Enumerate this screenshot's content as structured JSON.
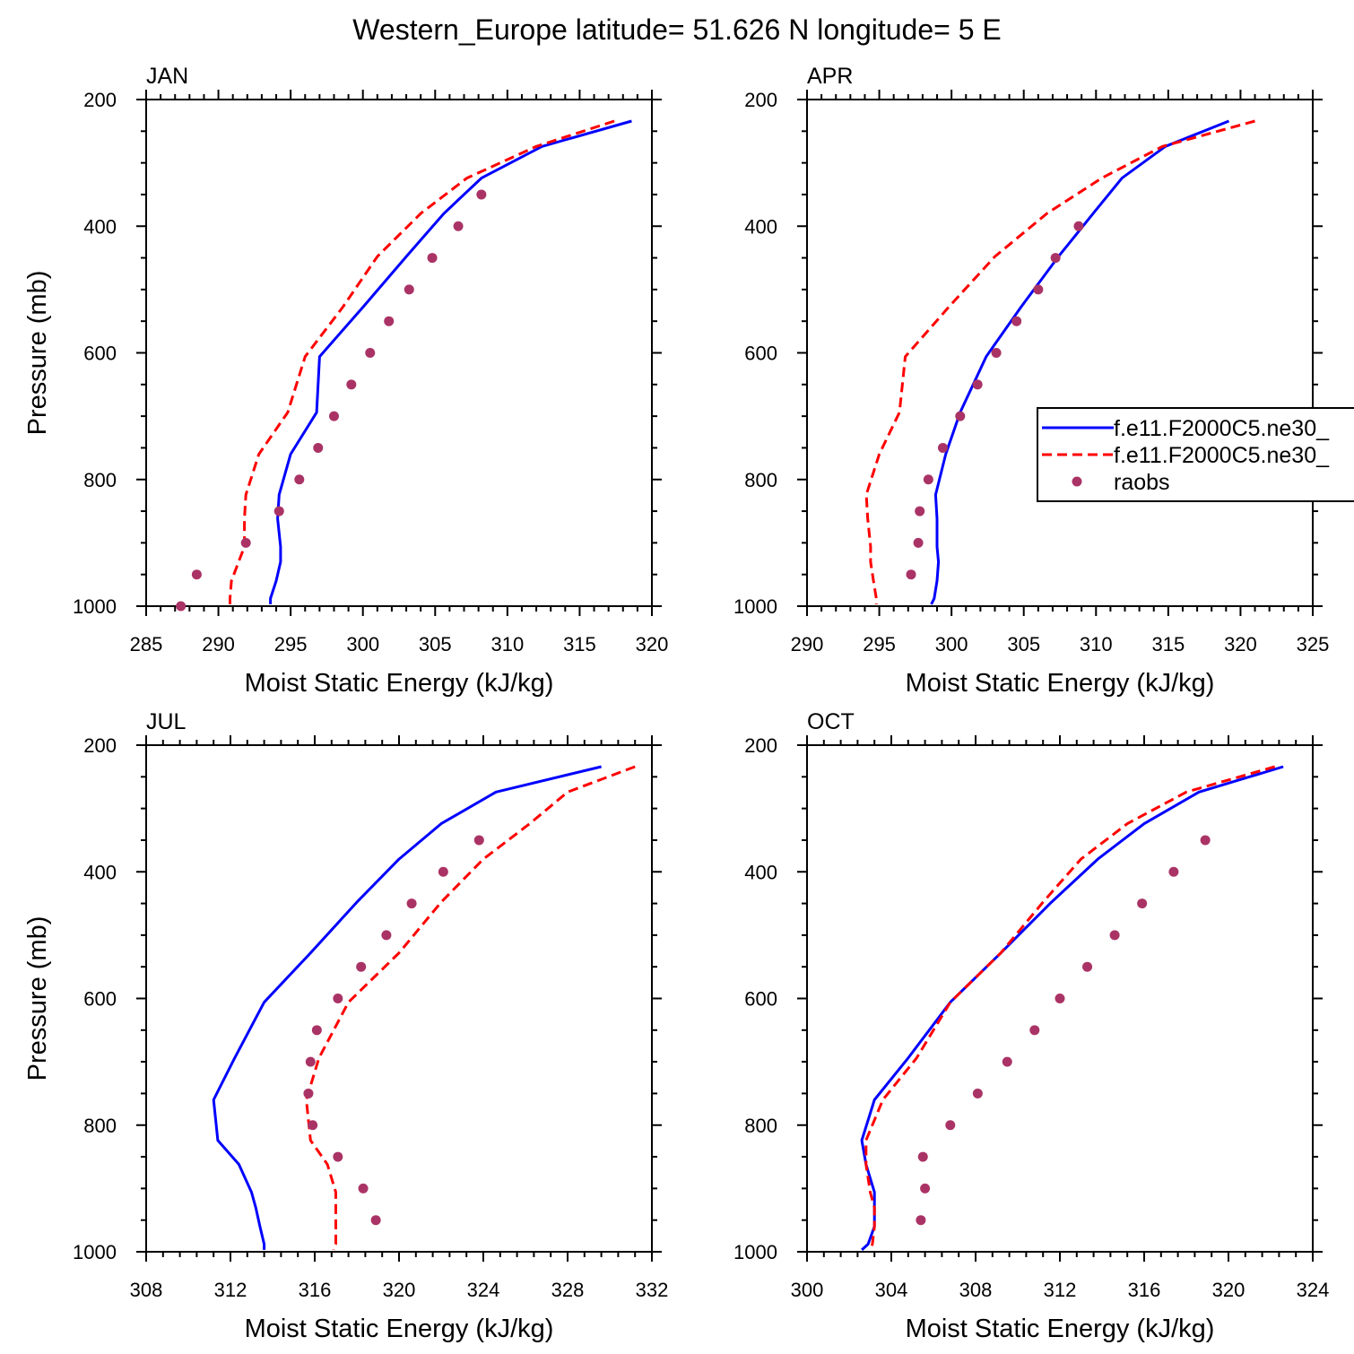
{
  "figure_title": "Western_Europe  latitude= 51.626 N longitude= 5 E",
  "legend": {
    "entries": [
      {
        "label": "f.e11.F2000C5.ne30_",
        "style": "solid",
        "color": "#0000ff"
      },
      {
        "label": "f.e11.F2000C5.ne30_",
        "style": "dashed",
        "color": "#ff0000"
      },
      {
        "label": "raobs",
        "style": "marker",
        "color": "#aa3366"
      }
    ]
  },
  "chart_data": [
    {
      "type": "line",
      "panel": "JAN",
      "title": "JAN",
      "xlabel": "Moist Static Energy (kJ/kg)",
      "ylabel": "Pressure (mb)",
      "xlim": [
        285,
        320
      ],
      "ylim": [
        200,
        1000
      ],
      "xticks": [
        285,
        290,
        295,
        300,
        305,
        310,
        315,
        320
      ],
      "yticks": [
        200,
        400,
        600,
        800,
        1000
      ],
      "series": [
        {
          "name": "f.e11.F2000C5.ne30_ (solid)",
          "color": "#0000ff",
          "style": "solid",
          "points": [
            [
              318.6,
              234
            ],
            [
              312.4,
              274
            ],
            [
              308.2,
              324
            ],
            [
              305.6,
              380
            ],
            [
              303.0,
              448
            ],
            [
              300.0,
              528
            ],
            [
              297.0,
              606
            ],
            [
              296.8,
              694
            ],
            [
              295.0,
              760
            ],
            [
              294.2,
              824
            ],
            [
              294.1,
              862
            ],
            [
              294.3,
              906
            ],
            [
              294.3,
              930
            ],
            [
              294.0,
              960
            ],
            [
              293.6,
              988
            ],
            [
              293.6,
              997
            ]
          ]
        },
        {
          "name": "f.e11.F2000C5.ne30_ (dashed)",
          "color": "#ff0000",
          "style": "dashed",
          "points": [
            [
              317.4,
              234
            ],
            [
              312.0,
              274
            ],
            [
              307.2,
              324
            ],
            [
              304.0,
              380
            ],
            [
              301.0,
              448
            ],
            [
              298.6,
              528
            ],
            [
              296.0,
              606
            ],
            [
              294.8,
              694
            ],
            [
              292.8,
              760
            ],
            [
              291.9,
              824
            ],
            [
              291.8,
              862
            ],
            [
              291.8,
              906
            ],
            [
              291.4,
              930
            ],
            [
              290.9,
              960
            ],
            [
              290.8,
              988
            ],
            [
              290.8,
              997
            ]
          ]
        },
        {
          "name": "raobs",
          "color": "#aa3366",
          "style": "marker",
          "points": [
            [
              308.2,
              350
            ],
            [
              306.6,
              400
            ],
            [
              304.8,
              450
            ],
            [
              303.2,
              500
            ],
            [
              301.8,
              550
            ],
            [
              300.5,
              600
            ],
            [
              299.2,
              650
            ],
            [
              298.0,
              700
            ],
            [
              296.9,
              750
            ],
            [
              295.6,
              800
            ],
            [
              294.2,
              850
            ],
            [
              291.9,
              900
            ],
            [
              288.5,
              950
            ],
            [
              287.4,
              1000
            ]
          ]
        }
      ]
    },
    {
      "type": "line",
      "panel": "APR",
      "title": "APR",
      "xlabel": "Moist Static Energy (kJ/kg)",
      "ylabel": "Pressure (mb)",
      "xlim": [
        290,
        325
      ],
      "ylim": [
        200,
        1000
      ],
      "xticks": [
        290,
        295,
        300,
        305,
        310,
        315,
        320,
        325
      ],
      "yticks": [
        200,
        400,
        600,
        800,
        1000
      ],
      "series": [
        {
          "name": "f.e11.F2000C5.ne30_ (solid)",
          "color": "#0000ff",
          "style": "solid",
          "points": [
            [
              319.2,
              234
            ],
            [
              314.8,
              274
            ],
            [
              311.8,
              324
            ],
            [
              309.8,
              380
            ],
            [
              307.4,
              448
            ],
            [
              304.8,
              528
            ],
            [
              302.4,
              606
            ],
            [
              300.6,
              694
            ],
            [
              299.6,
              760
            ],
            [
              298.9,
              824
            ],
            [
              299.0,
              862
            ],
            [
              299.0,
              906
            ],
            [
              299.1,
              930
            ],
            [
              299.0,
              960
            ],
            [
              298.8,
              988
            ],
            [
              298.6,
              997
            ]
          ]
        },
        {
          "name": "f.e11.F2000C5.ne30_ (dashed)",
          "color": "#ff0000",
          "style": "dashed",
          "points": [
            [
              321.0,
              234
            ],
            [
              314.6,
              274
            ],
            [
              310.4,
              324
            ],
            [
              306.6,
              380
            ],
            [
              303.0,
              448
            ],
            [
              299.8,
              528
            ],
            [
              296.8,
              606
            ],
            [
              296.4,
              694
            ],
            [
              295.0,
              760
            ],
            [
              294.1,
              824
            ],
            [
              294.2,
              862
            ],
            [
              294.4,
              906
            ],
            [
              294.4,
              930
            ],
            [
              294.6,
              960
            ],
            [
              294.8,
              988
            ],
            [
              294.8,
              997
            ]
          ]
        },
        {
          "name": "raobs",
          "color": "#aa3366",
          "style": "marker",
          "points": [
            [
              308.8,
              400
            ],
            [
              307.2,
              450
            ],
            [
              306.0,
              500
            ],
            [
              304.5,
              550
            ],
            [
              303.1,
              600
            ],
            [
              301.8,
              650
            ],
            [
              300.6,
              700
            ],
            [
              299.4,
              750
            ],
            [
              298.4,
              800
            ],
            [
              297.8,
              850
            ],
            [
              297.7,
              900
            ],
            [
              297.2,
              950
            ]
          ]
        }
      ]
    },
    {
      "type": "line",
      "panel": "JUL",
      "title": "JUL",
      "xlabel": "Moist Static Energy (kJ/kg)",
      "ylabel": "Pressure (mb)",
      "xlim": [
        308,
        332
      ],
      "ylim": [
        200,
        1000
      ],
      "xticks": [
        308,
        312,
        316,
        320,
        324,
        328,
        332
      ],
      "yticks": [
        200,
        400,
        600,
        800,
        1000
      ],
      "series": [
        {
          "name": "f.e11.F2000C5.ne30_ (solid)",
          "color": "#0000ff",
          "style": "solid",
          "points": [
            [
              329.6,
              234
            ],
            [
              324.6,
              274
            ],
            [
              322.0,
              324
            ],
            [
              320.0,
              380
            ],
            [
              318.0,
              448
            ],
            [
              315.8,
              528
            ],
            [
              313.6,
              606
            ],
            [
              312.2,
              694
            ],
            [
              311.2,
              760
            ],
            [
              311.4,
              824
            ],
            [
              312.4,
              862
            ],
            [
              313.0,
              906
            ],
            [
              313.2,
              930
            ],
            [
              313.4,
              960
            ],
            [
              313.6,
              988
            ],
            [
              313.6,
              997
            ]
          ]
        },
        {
          "name": "f.e11.F2000C5.ne30_ (dashed)",
          "color": "#ff0000",
          "style": "dashed",
          "points": [
            [
              331.2,
              234
            ],
            [
              328.0,
              274
            ],
            [
              326.2,
              324
            ],
            [
              324.0,
              380
            ],
            [
              322.0,
              448
            ],
            [
              320.0,
              528
            ],
            [
              317.6,
              606
            ],
            [
              316.2,
              694
            ],
            [
              315.6,
              760
            ],
            [
              315.8,
              824
            ],
            [
              316.6,
              862
            ],
            [
              317.0,
              906
            ],
            [
              317.0,
              930
            ],
            [
              317.0,
              960
            ],
            [
              317.0,
              988
            ],
            [
              316.9,
              997
            ]
          ]
        },
        {
          "name": "raobs",
          "color": "#aa3366",
          "style": "marker",
          "points": [
            [
              323.8,
              350
            ],
            [
              322.1,
              400
            ],
            [
              320.6,
              450
            ],
            [
              319.4,
              500
            ],
            [
              318.2,
              550
            ],
            [
              317.1,
              600
            ],
            [
              316.1,
              650
            ],
            [
              315.8,
              700
            ],
            [
              315.7,
              750
            ],
            [
              315.9,
              800
            ],
            [
              317.1,
              850
            ],
            [
              318.3,
              900
            ],
            [
              318.9,
              950
            ]
          ]
        }
      ]
    },
    {
      "type": "line",
      "panel": "OCT",
      "title": "OCT",
      "xlabel": "Moist Static Energy (kJ/kg)",
      "ylabel": "Pressure (mb)",
      "xlim": [
        300,
        324
      ],
      "ylim": [
        200,
        1000
      ],
      "xticks": [
        300,
        304,
        308,
        312,
        316,
        320,
        324
      ],
      "yticks": [
        200,
        400,
        600,
        800,
        1000
      ],
      "series": [
        {
          "name": "f.e11.F2000C5.ne30_ (solid)",
          "color": "#0000ff",
          "style": "solid",
          "points": [
            [
              322.6,
              234
            ],
            [
              318.6,
              274
            ],
            [
              316.0,
              324
            ],
            [
              313.8,
              380
            ],
            [
              311.6,
              448
            ],
            [
              309.2,
              528
            ],
            [
              306.8,
              606
            ],
            [
              304.8,
              694
            ],
            [
              303.2,
              760
            ],
            [
              302.6,
              824
            ],
            [
              302.8,
              862
            ],
            [
              303.2,
              906
            ],
            [
              303.2,
              930
            ],
            [
              303.2,
              960
            ],
            [
              302.9,
              988
            ],
            [
              302.6,
              997
            ]
          ]
        },
        {
          "name": "f.e11.F2000C5.ne30_ (dashed)",
          "color": "#ff0000",
          "style": "dashed",
          "points": [
            [
              322.2,
              234
            ],
            [
              318.0,
              274
            ],
            [
              315.2,
              324
            ],
            [
              313.0,
              380
            ],
            [
              311.2,
              448
            ],
            [
              309.2,
              528
            ],
            [
              306.8,
              606
            ],
            [
              305.2,
              694
            ],
            [
              303.6,
              760
            ],
            [
              302.8,
              824
            ],
            [
              302.8,
              862
            ],
            [
              303.0,
              906
            ],
            [
              303.2,
              930
            ],
            [
              303.2,
              960
            ],
            [
              303.1,
              988
            ],
            [
              303.0,
              997
            ]
          ]
        },
        {
          "name": "raobs",
          "color": "#aa3366",
          "style": "marker",
          "points": [
            [
              318.9,
              350
            ],
            [
              317.4,
              400
            ],
            [
              315.9,
              450
            ],
            [
              314.6,
              500
            ],
            [
              313.3,
              550
            ],
            [
              312.0,
              600
            ],
            [
              310.8,
              650
            ],
            [
              309.5,
              700
            ],
            [
              308.1,
              750
            ],
            [
              306.8,
              800
            ],
            [
              305.5,
              850
            ],
            [
              305.6,
              900
            ],
            [
              305.4,
              950
            ]
          ]
        }
      ]
    }
  ]
}
